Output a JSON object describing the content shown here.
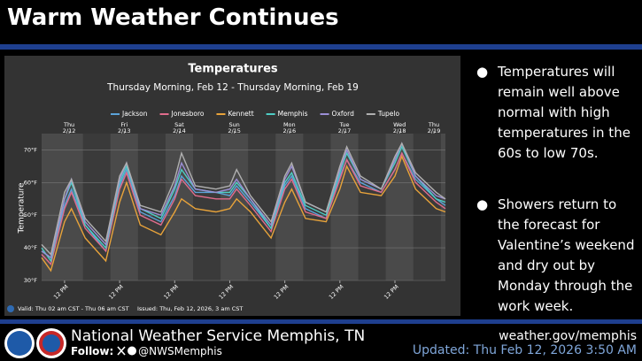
{
  "header": {
    "title": "Warm Weather Continues"
  },
  "bullets": [
    "Temperatures will remain well above normal with high temperatures in the 60s to low 70s.",
    "Showers return to the forecast for Valentine’s weekend and dry out by Monday through the work week."
  ],
  "chart_data": {
    "type": "line",
    "title": "Temperatures",
    "subtitle": "Thursday Morning, Feb 12 - Thursday Morning, Feb 19",
    "ylabel": "Temperature",
    "x": [
      0,
      4,
      10,
      13,
      19,
      28,
      34,
      37,
      43,
      52,
      58,
      61,
      67,
      76,
      82,
      85,
      91,
      100,
      106,
      109,
      115,
      124,
      130,
      133,
      139,
      148,
      154,
      157,
      163,
      172,
      176
    ],
    "xlim": [
      0,
      176
    ],
    "xticks": [
      {
        "value": 10,
        "label": "12 PM"
      },
      {
        "value": 34,
        "label": "12 PM"
      },
      {
        "value": 58,
        "label": "12 PM"
      },
      {
        "value": 82,
        "label": "12 PM"
      },
      {
        "value": 106,
        "label": "12 PM"
      },
      {
        "value": 130,
        "label": "12 PM"
      },
      {
        "value": 154,
        "label": "12 PM"
      }
    ],
    "x2ticks": [
      {
        "value": 12,
        "label": "Thu"
      },
      {
        "value": 36,
        "label": "Fri"
      },
      {
        "value": 60,
        "label": "Sat"
      },
      {
        "value": 84,
        "label": "Sun"
      },
      {
        "value": 108,
        "label": "Mon"
      },
      {
        "value": 132,
        "label": "Tue"
      },
      {
        "value": 156,
        "label": "Wed"
      },
      {
        "value": 171,
        "label": "Thu"
      }
    ],
    "x2tick_dates": [
      "2/12",
      "2/13",
      "2/14",
      "2/15",
      "2/16",
      "2/17",
      "2/18",
      "2/19"
    ],
    "ylim": [
      30,
      75
    ],
    "yticks": [
      {
        "value": 30,
        "label": "30°F"
      },
      {
        "value": 40,
        "label": "40°F"
      },
      {
        "value": 50,
        "label": "50°F"
      },
      {
        "value": 60,
        "label": "60°F"
      },
      {
        "value": 70,
        "label": "70°F"
      }
    ],
    "grid": true,
    "series": [
      {
        "name": "Jackson",
        "color": "#5ba3d9",
        "values": [
          39,
          37,
          53,
          58,
          47,
          39,
          59,
          64,
          51,
          48,
          56,
          62,
          57,
          57,
          56,
          59,
          54,
          46,
          59,
          62,
          52,
          49,
          62,
          67,
          60,
          57,
          64,
          69,
          61,
          55,
          53
        ]
      },
      {
        "name": "Jonesboro",
        "color": "#e06c8c",
        "values": [
          38,
          35,
          52,
          57,
          46,
          39,
          58,
          63,
          50,
          47,
          55,
          61,
          56,
          55,
          55,
          58,
          53,
          45,
          58,
          61,
          51,
          49,
          61,
          67,
          59,
          57,
          64,
          69,
          60,
          54,
          52
        ]
      },
      {
        "name": "Kennett",
        "color": "#e8a33a",
        "values": [
          37,
          33,
          48,
          52,
          43,
          36,
          54,
          60,
          47,
          44,
          51,
          55,
          52,
          51,
          52,
          55,
          51,
          43,
          54,
          58,
          49,
          48,
          58,
          65,
          57,
          56,
          62,
          68,
          58,
          52,
          51
        ]
      },
      {
        "name": "Memphis",
        "color": "#4ecdc4",
        "values": [
          40,
          36,
          55,
          60,
          47,
          40,
          60,
          65,
          52,
          49,
          58,
          64,
          58,
          57,
          57,
          60,
          55,
          46,
          60,
          63,
          53,
          50,
          63,
          69,
          61,
          58,
          66,
          71,
          62,
          55,
          54
        ]
      },
      {
        "name": "Oxford",
        "color": "#9b8fd6",
        "values": [
          39,
          37,
          55,
          61,
          48,
          41,
          61,
          66,
          52,
          50,
          59,
          66,
          58,
          57,
          58,
          61,
          55,
          47,
          61,
          65,
          54,
          51,
          64,
          70,
          61,
          58,
          67,
          72,
          62,
          56,
          55
        ]
      },
      {
        "name": "Tupelo",
        "color": "#b0b0b0",
        "values": [
          41,
          38,
          57,
          61,
          49,
          42,
          62,
          66,
          53,
          51,
          61,
          69,
          59,
          58,
          59,
          64,
          56,
          48,
          62,
          66,
          54,
          51,
          65,
          71,
          62,
          58,
          68,
          72,
          63,
          57,
          55
        ]
      }
    ],
    "footnote_valid": "Valid: Thu 02 am CST - Thu 06 am CST",
    "footnote_issued": "Issued: Thu, Feb 12, 2026, 3 am CST"
  },
  "footer": {
    "office": "National Weather Service Memphis, TN",
    "follow_label": "Follow:",
    "handle": "@NWSMemphis",
    "website": "weather.gov/memphis",
    "updated": "Updated: Thu Feb 12, 2026 3:50 AM"
  }
}
